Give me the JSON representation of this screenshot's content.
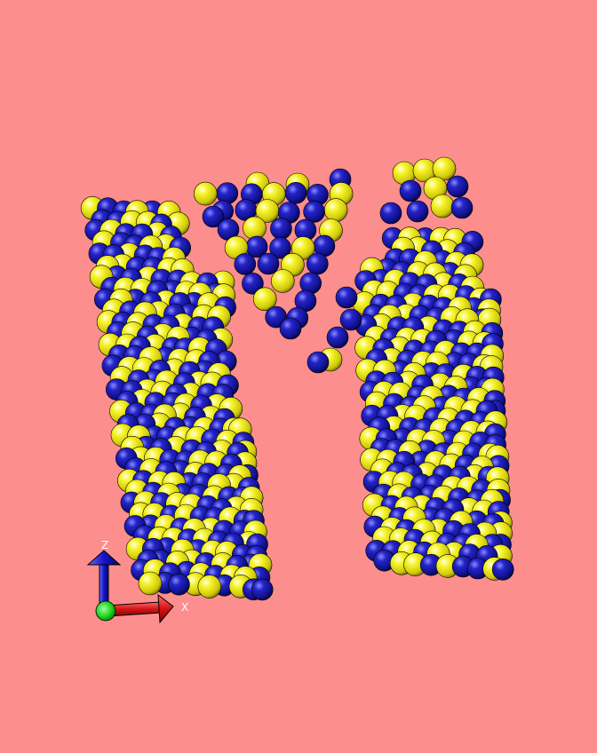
{
  "scene": {
    "background_color": "#fc8e8e",
    "atom_colors": {
      "a": "#f2ef18",
      "b": "#1a1aa6"
    }
  },
  "axes": {
    "x_label": "X",
    "z_label": "Z",
    "colors": {
      "x": "#d41414",
      "y": "#18d018",
      "z": "#1414c8"
    }
  }
}
